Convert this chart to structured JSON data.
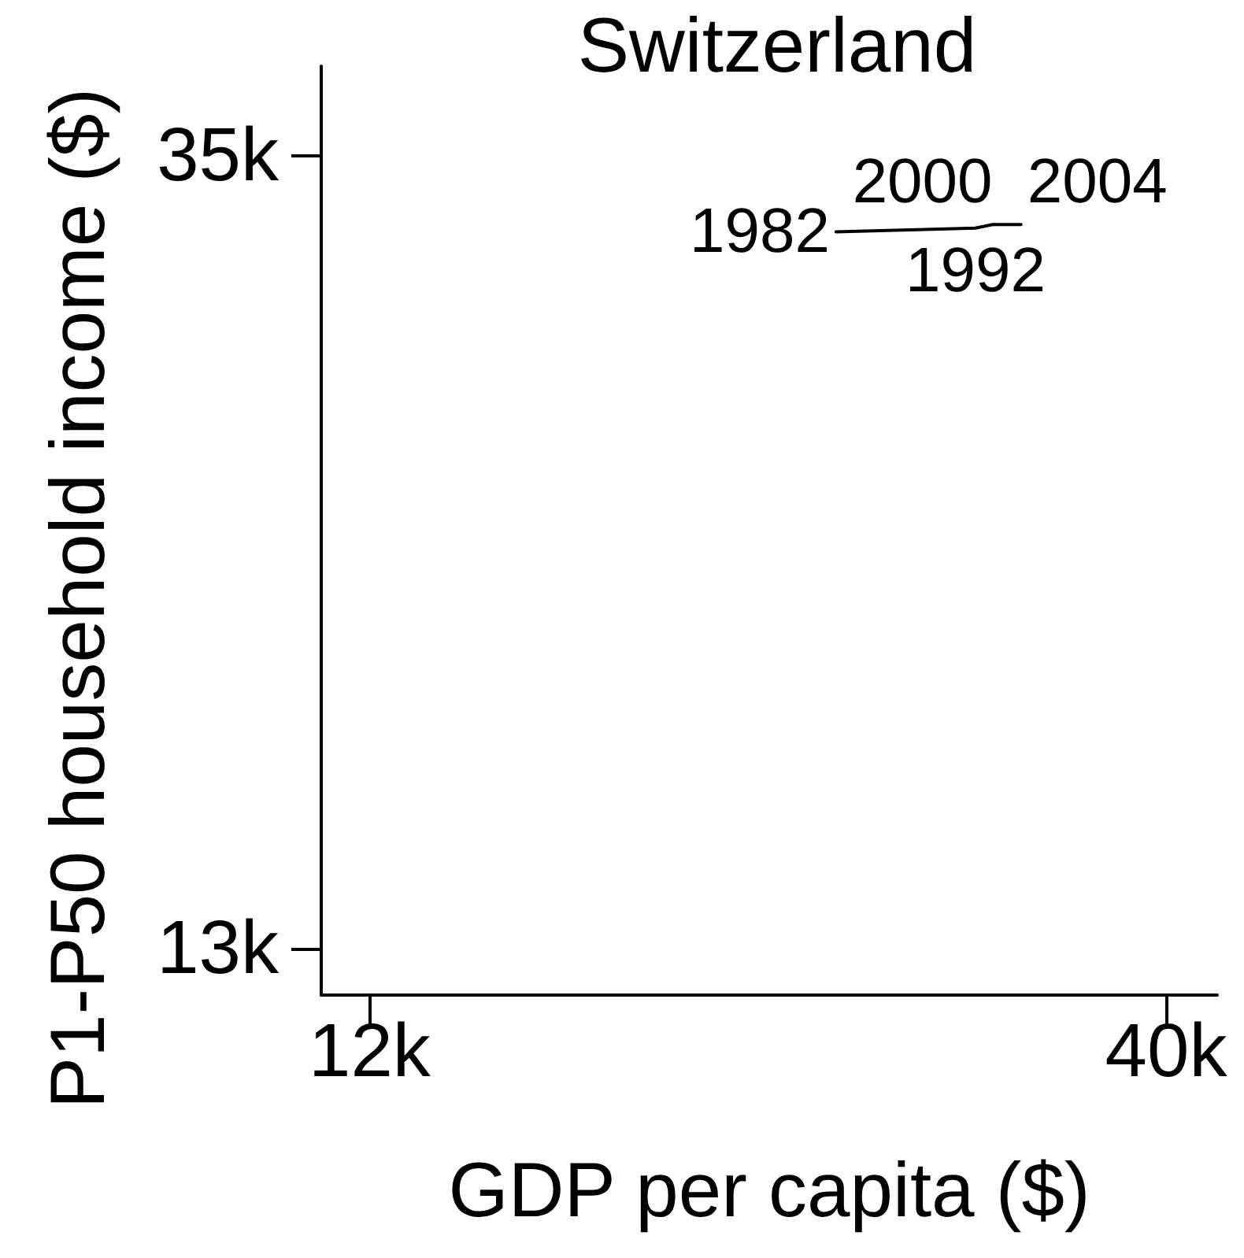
{
  "chart_data": {
    "type": "line",
    "title": "Switzerland",
    "xlabel": "GDP per capita ($)",
    "ylabel": "P1-P50 household income ($)",
    "x": [
      28400,
      33300,
      33900,
      34900
    ],
    "values": [
      32900,
      33000,
      33100,
      33100
    ],
    "color": "#000000",
    "marker": "none",
    "line_style": "solid",
    "annotations": [
      {
        "text": "1982",
        "x": 28400,
        "y": 32900
      },
      {
        "text": "1992",
        "x": 33300,
        "y": 33000
      },
      {
        "text": "2000",
        "x": 33900,
        "y": 33100
      },
      {
        "text": "2004",
        "x": 34900,
        "y": 33100
      }
    ],
    "xlim": [
      10300,
      41800
    ],
    "ylim": [
      11700,
      37500
    ],
    "xticks": [
      {
        "value": 12000,
        "label": "12k"
      },
      {
        "value": 40000,
        "label": "40k"
      }
    ],
    "yticks": [
      {
        "value": 13000,
        "label": "13k"
      },
      {
        "value": 35000,
        "label": "35k"
      }
    ]
  }
}
